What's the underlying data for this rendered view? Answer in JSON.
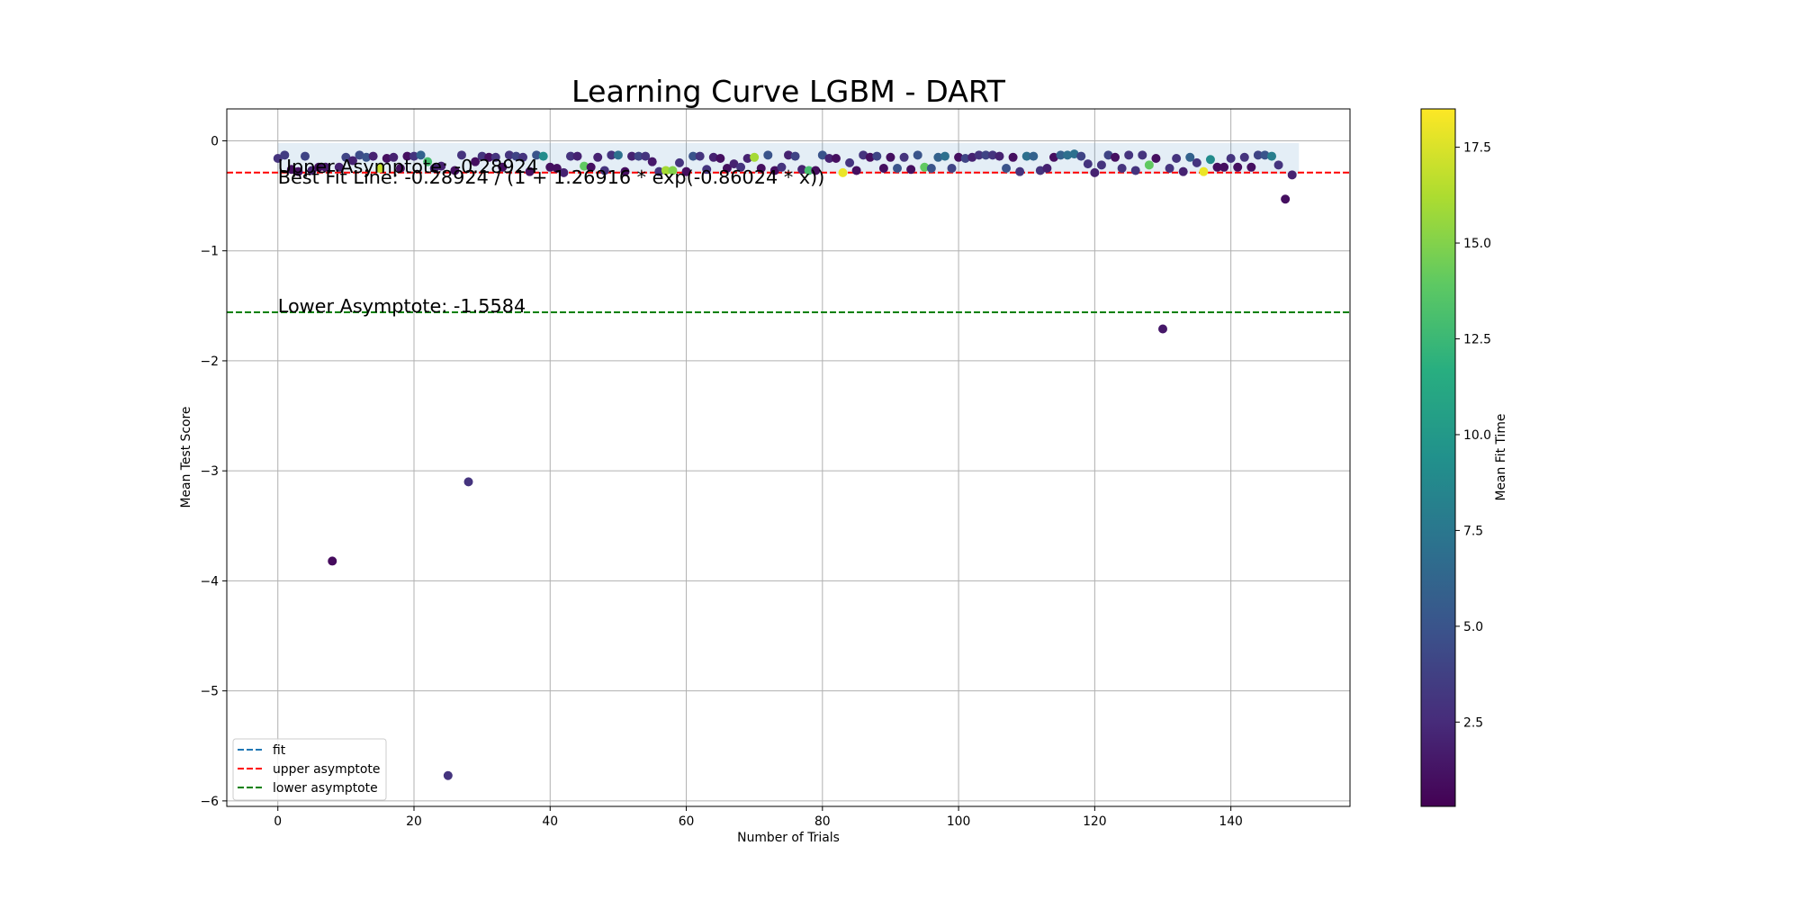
{
  "chart_data": {
    "type": "scatter",
    "title": "Learning Curve LGBM - DART",
    "xlabel": "Number of Trials",
    "ylabel": "Mean Test Score",
    "xlim": [
      -7.5,
      157.5
    ],
    "ylim": [
      -6.05,
      0.29
    ],
    "xticks": [
      0,
      20,
      40,
      60,
      80,
      100,
      120,
      140
    ],
    "yticks": [
      0,
      -1,
      -2,
      -3,
      -4,
      -5,
      -6
    ],
    "xtick_labels": [
      "0",
      "20",
      "40",
      "60",
      "80",
      "100",
      "120",
      "140"
    ],
    "ytick_labels": [
      "0",
      "−1",
      "−2",
      "−3",
      "−4",
      "−5",
      "−6"
    ],
    "grid": true,
    "upper_asymptote": -0.28924,
    "lower_asymptote": -1.5584,
    "upper_asymptote_color": "#ff0000",
    "lower_asymptote_color": "#008000",
    "fit_color": "#1f77b4",
    "band": {
      "x": [
        0,
        150
      ],
      "y": [
        -0.3,
        -0.02
      ]
    },
    "annotations": [
      {
        "text": "Upper Asymptote: -0.28924",
        "x": 0,
        "y": -0.28924
      },
      {
        "text": "Best Fit Line: -0.28924 / (1 + 1.26916 * exp(-0.86024 * x))",
        "x": 0,
        "y": -0.39
      },
      {
        "text": "Lower Asymptote: -1.5584",
        "x": 0,
        "y": -1.5584
      }
    ],
    "legend": {
      "placement": "lower-left",
      "entries": [
        {
          "label": "fit",
          "color": "#1f77b4"
        },
        {
          "label": "upper asymptote",
          "color": "#ff0000"
        },
        {
          "label": "lower asymptote",
          "color": "#008000"
        }
      ]
    },
    "colorbar": {
      "label": "Mean Fit Time",
      "range": [
        0.3,
        18.5
      ],
      "ticks": [
        2.5,
        5.0,
        7.5,
        10.0,
        12.5,
        15.0,
        17.5
      ],
      "tick_labels": [
        "2.5",
        "5.0",
        "7.5",
        "10.0",
        "12.5",
        "15.0",
        "17.5"
      ],
      "colormap": "viridis"
    },
    "points": [
      {
        "x": 0,
        "y": -0.16,
        "c": 3
      },
      {
        "x": 1,
        "y": -0.13,
        "c": 3.5
      },
      {
        "x": 2,
        "y": -0.26,
        "c": 1
      },
      {
        "x": 3,
        "y": -0.28,
        "c": 1
      },
      {
        "x": 4,
        "y": -0.14,
        "c": 4
      },
      {
        "x": 5,
        "y": -0.27,
        "c": 2
      },
      {
        "x": 6,
        "y": -0.24,
        "c": 1
      },
      {
        "x": 7,
        "y": -0.24,
        "c": 1.5
      },
      {
        "x": 8,
        "y": -3.82,
        "c": 0.8
      },
      {
        "x": 9,
        "y": -0.24,
        "c": 2
      },
      {
        "x": 10,
        "y": -0.15,
        "c": 4
      },
      {
        "x": 11,
        "y": -0.18,
        "c": 2
      },
      {
        "x": 12,
        "y": -0.13,
        "c": 4.5
      },
      {
        "x": 13,
        "y": -0.15,
        "c": 5
      },
      {
        "x": 14,
        "y": -0.14,
        "c": 2
      },
      {
        "x": 15,
        "y": -0.25,
        "c": 17
      },
      {
        "x": 16,
        "y": -0.16,
        "c": 1
      },
      {
        "x": 17,
        "y": -0.15,
        "c": 2
      },
      {
        "x": 18,
        "y": -0.25,
        "c": 1
      },
      {
        "x": 19,
        "y": -0.14,
        "c": 1
      },
      {
        "x": 20,
        "y": -0.14,
        "c": 3
      },
      {
        "x": 21,
        "y": -0.13,
        "c": 6
      },
      {
        "x": 22,
        "y": -0.19,
        "c": 13
      },
      {
        "x": 23,
        "y": -0.25,
        "c": 2
      },
      {
        "x": 24,
        "y": -0.23,
        "c": 2
      },
      {
        "x": 25,
        "y": -5.77,
        "c": 3
      },
      {
        "x": 26,
        "y": -0.27,
        "c": 1
      },
      {
        "x": 27,
        "y": -0.13,
        "c": 3
      },
      {
        "x": 28,
        "y": -3.1,
        "c": 3
      },
      {
        "x": 29,
        "y": -0.19,
        "c": 1
      },
      {
        "x": 30,
        "y": -0.14,
        "c": 3
      },
      {
        "x": 31,
        "y": -0.15,
        "c": 1
      },
      {
        "x": 32,
        "y": -0.15,
        "c": 3
      },
      {
        "x": 33,
        "y": -0.24,
        "c": 1
      },
      {
        "x": 34,
        "y": -0.13,
        "c": 3
      },
      {
        "x": 35,
        "y": -0.14,
        "c": 4
      },
      {
        "x": 36,
        "y": -0.15,
        "c": 3
      },
      {
        "x": 37,
        "y": -0.28,
        "c": 1
      },
      {
        "x": 38,
        "y": -0.13,
        "c": 5
      },
      {
        "x": 39,
        "y": -0.14,
        "c": 9
      },
      {
        "x": 40,
        "y": -0.24,
        "c": 1
      },
      {
        "x": 41,
        "y": -0.25,
        "c": 1
      },
      {
        "x": 42,
        "y": -0.29,
        "c": 2
      },
      {
        "x": 43,
        "y": -0.14,
        "c": 3
      },
      {
        "x": 44,
        "y": -0.14,
        "c": 2
      },
      {
        "x": 45,
        "y": -0.23,
        "c": 14
      },
      {
        "x": 46,
        "y": -0.24,
        "c": 1
      },
      {
        "x": 47,
        "y": -0.15,
        "c": 2
      },
      {
        "x": 48,
        "y": -0.27,
        "c": 3
      },
      {
        "x": 49,
        "y": -0.13,
        "c": 3
      },
      {
        "x": 50,
        "y": -0.13,
        "c": 7
      },
      {
        "x": 51,
        "y": -0.28,
        "c": 1
      },
      {
        "x": 52,
        "y": -0.14,
        "c": 2
      },
      {
        "x": 53,
        "y": -0.14,
        "c": 4
      },
      {
        "x": 54,
        "y": -0.14,
        "c": 3
      },
      {
        "x": 55,
        "y": -0.19,
        "c": 1.5
      },
      {
        "x": 56,
        "y": -0.28,
        "c": 3
      },
      {
        "x": 57,
        "y": -0.27,
        "c": 16
      },
      {
        "x": 58,
        "y": -0.27,
        "c": 15
      },
      {
        "x": 59,
        "y": -0.2,
        "c": 3
      },
      {
        "x": 60,
        "y": -0.28,
        "c": 1
      },
      {
        "x": 61,
        "y": -0.14,
        "c": 5
      },
      {
        "x": 62,
        "y": -0.14,
        "c": 3
      },
      {
        "x": 63,
        "y": -0.26,
        "c": 3
      },
      {
        "x": 64,
        "y": -0.15,
        "c": 2
      },
      {
        "x": 65,
        "y": -0.16,
        "c": 1
      },
      {
        "x": 66,
        "y": -0.25,
        "c": 1
      },
      {
        "x": 67,
        "y": -0.21,
        "c": 2
      },
      {
        "x": 68,
        "y": -0.24,
        "c": 3
      },
      {
        "x": 69,
        "y": -0.16,
        "c": 2
      },
      {
        "x": 70,
        "y": -0.15,
        "c": 16
      },
      {
        "x": 71,
        "y": -0.25,
        "c": 1
      },
      {
        "x": 72,
        "y": -0.13,
        "c": 5
      },
      {
        "x": 73,
        "y": -0.27,
        "c": 1
      },
      {
        "x": 74,
        "y": -0.24,
        "c": 3
      },
      {
        "x": 75,
        "y": -0.13,
        "c": 2
      },
      {
        "x": 76,
        "y": -0.14,
        "c": 4
      },
      {
        "x": 77,
        "y": -0.26,
        "c": 2
      },
      {
        "x": 78,
        "y": -0.27,
        "c": 13
      },
      {
        "x": 79,
        "y": -0.27,
        "c": 1
      },
      {
        "x": 80,
        "y": -0.13,
        "c": 5
      },
      {
        "x": 81,
        "y": -0.16,
        "c": 2
      },
      {
        "x": 82,
        "y": -0.16,
        "c": 1
      },
      {
        "x": 83,
        "y": -0.29,
        "c": 18
      },
      {
        "x": 84,
        "y": -0.2,
        "c": 3
      },
      {
        "x": 85,
        "y": -0.27,
        "c": 1
      },
      {
        "x": 86,
        "y": -0.13,
        "c": 3
      },
      {
        "x": 87,
        "y": -0.15,
        "c": 1
      },
      {
        "x": 88,
        "y": -0.14,
        "c": 4
      },
      {
        "x": 89,
        "y": -0.25,
        "c": 1
      },
      {
        "x": 90,
        "y": -0.15,
        "c": 1
      },
      {
        "x": 91,
        "y": -0.25,
        "c": 5
      },
      {
        "x": 92,
        "y": -0.15,
        "c": 3
      },
      {
        "x": 93,
        "y": -0.26,
        "c": 1
      },
      {
        "x": 94,
        "y": -0.13,
        "c": 5
      },
      {
        "x": 95,
        "y": -0.24,
        "c": 14
      },
      {
        "x": 96,
        "y": -0.25,
        "c": 5
      },
      {
        "x": 97,
        "y": -0.15,
        "c": 6
      },
      {
        "x": 98,
        "y": -0.14,
        "c": 7
      },
      {
        "x": 99,
        "y": -0.25,
        "c": 4
      },
      {
        "x": 100,
        "y": -0.15,
        "c": 1
      },
      {
        "x": 101,
        "y": -0.16,
        "c": 4
      },
      {
        "x": 102,
        "y": -0.15,
        "c": 2
      },
      {
        "x": 103,
        "y": -0.13,
        "c": 3
      },
      {
        "x": 104,
        "y": -0.13,
        "c": 4
      },
      {
        "x": 105,
        "y": -0.13,
        "c": 3
      },
      {
        "x": 106,
        "y": -0.14,
        "c": 2
      },
      {
        "x": 107,
        "y": -0.25,
        "c": 5
      },
      {
        "x": 108,
        "y": -0.15,
        "c": 1
      },
      {
        "x": 109,
        "y": -0.28,
        "c": 3
      },
      {
        "x": 110,
        "y": -0.14,
        "c": 7
      },
      {
        "x": 111,
        "y": -0.14,
        "c": 6
      },
      {
        "x": 112,
        "y": -0.27,
        "c": 3
      },
      {
        "x": 113,
        "y": -0.25,
        "c": 2
      },
      {
        "x": 114,
        "y": -0.15,
        "c": 1
      },
      {
        "x": 115,
        "y": -0.13,
        "c": 6
      },
      {
        "x": 116,
        "y": -0.13,
        "c": 7
      },
      {
        "x": 117,
        "y": -0.12,
        "c": 7
      },
      {
        "x": 118,
        "y": -0.14,
        "c": 4
      },
      {
        "x": 119,
        "y": -0.21,
        "c": 3
      },
      {
        "x": 120,
        "y": -0.29,
        "c": 2
      },
      {
        "x": 121,
        "y": -0.22,
        "c": 3
      },
      {
        "x": 122,
        "y": -0.13,
        "c": 4
      },
      {
        "x": 123,
        "y": -0.15,
        "c": 1
      },
      {
        "x": 124,
        "y": -0.25,
        "c": 3
      },
      {
        "x": 125,
        "y": -0.13,
        "c": 3
      },
      {
        "x": 126,
        "y": -0.27,
        "c": 3
      },
      {
        "x": 127,
        "y": -0.13,
        "c": 3
      },
      {
        "x": 128,
        "y": -0.22,
        "c": 14
      },
      {
        "x": 129,
        "y": -0.16,
        "c": 1
      },
      {
        "x": 130,
        "y": -1.71,
        "c": 1.5
      },
      {
        "x": 131,
        "y": -0.25,
        "c": 3
      },
      {
        "x": 132,
        "y": -0.16,
        "c": 3
      },
      {
        "x": 133,
        "y": -0.28,
        "c": 2
      },
      {
        "x": 134,
        "y": -0.15,
        "c": 6
      },
      {
        "x": 135,
        "y": -0.2,
        "c": 3
      },
      {
        "x": 136,
        "y": -0.28,
        "c": 18
      },
      {
        "x": 137,
        "y": -0.17,
        "c": 9
      },
      {
        "x": 138,
        "y": -0.24,
        "c": 1
      },
      {
        "x": 139,
        "y": -0.24,
        "c": 1
      },
      {
        "x": 140,
        "y": -0.16,
        "c": 3
      },
      {
        "x": 141,
        "y": -0.24,
        "c": 1
      },
      {
        "x": 142,
        "y": -0.15,
        "c": 3
      },
      {
        "x": 143,
        "y": -0.24,
        "c": 1
      },
      {
        "x": 144,
        "y": -0.13,
        "c": 4
      },
      {
        "x": 145,
        "y": -0.13,
        "c": 5
      },
      {
        "x": 146,
        "y": -0.14,
        "c": 8
      },
      {
        "x": 147,
        "y": -0.22,
        "c": 3
      },
      {
        "x": 148,
        "y": -0.53,
        "c": 1
      },
      {
        "x": 149,
        "y": -0.31,
        "c": 2
      }
    ]
  }
}
